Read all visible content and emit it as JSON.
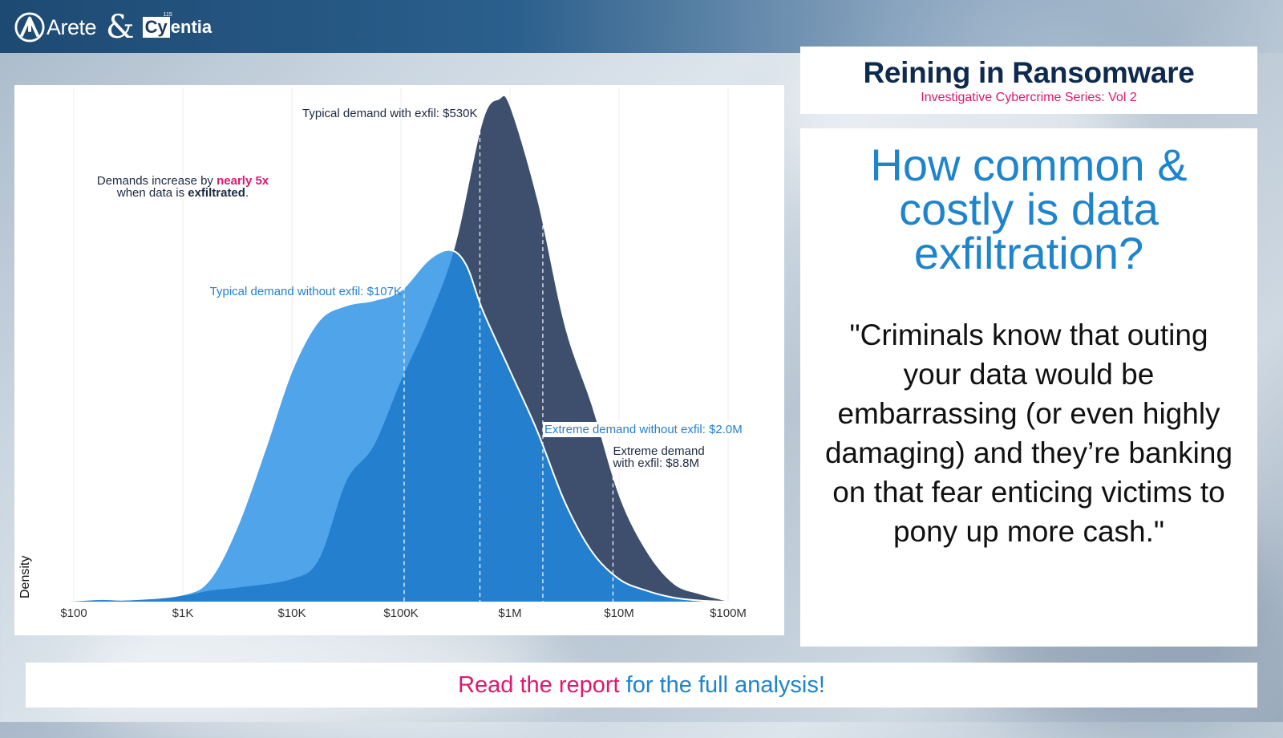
{
  "header": {
    "logo_left": "Arete",
    "ampersand": "&",
    "logo_right_box": "Cy",
    "logo_right_rest": "entia",
    "logo_right_sup": "115"
  },
  "title_card": {
    "title": "Reining in Ransomware",
    "subtitle": "Investigative Cybercrime Series: Vol 2"
  },
  "quote_card": {
    "question": "How common & costly is data exfiltration?",
    "quote": "\"Criminals know that outing your data would be embarrassing (or even highly damaging) and they’re banking on that fear enticing victims to pony up more cash.\""
  },
  "footer": {
    "link_text": "Read the report",
    "rest_text": " for the full analysis!"
  },
  "colors": {
    "with_exfil": "#3d4f6c",
    "without_exfil_light": "#4fa4ea",
    "overlap": "#2480cf",
    "title_navy": "#0f2a4f",
    "accent_pink": "#e0176d",
    "accent_blue": "#1e84cc"
  },
  "chart_data": {
    "type": "area",
    "ylabel": "Density",
    "xlabel": "",
    "x_scale": "log10",
    "xlim": [
      100,
      100000000
    ],
    "ylim": [
      0,
      1.0
    ],
    "x_ticks": [
      {
        "value": 100,
        "label": "$100"
      },
      {
        "value": 1000,
        "label": "$1K"
      },
      {
        "value": 10000,
        "label": "$10K"
      },
      {
        "value": 100000,
        "label": "$100K"
      },
      {
        "value": 1000000,
        "label": "$1M"
      },
      {
        "value": 10000000,
        "label": "$10M"
      },
      {
        "value": 100000000,
        "label": "$100M"
      }
    ],
    "series": [
      {
        "name": "with exfil",
        "color": "#3d4f6c",
        "points": [
          [
            50,
            0.0
          ],
          [
            100,
            0.002
          ],
          [
            316,
            0.004
          ],
          [
            1000,
            0.012
          ],
          [
            1778,
            0.022
          ],
          [
            3162,
            0.028
          ],
          [
            10000,
            0.045
          ],
          [
            17783,
            0.085
          ],
          [
            31623,
            0.24
          ],
          [
            56234,
            0.31
          ],
          [
            100000,
            0.44
          ],
          [
            177828,
            0.56
          ],
          [
            316228,
            0.71
          ],
          [
            562341,
            0.955
          ],
          [
            794328,
            1.0
          ],
          [
            1000000,
            0.985
          ],
          [
            1778279,
            0.8
          ],
          [
            3162278,
            0.55
          ],
          [
            5623413,
            0.39
          ],
          [
            10000000,
            0.21
          ],
          [
            17782794,
            0.1
          ],
          [
            31622777,
            0.035
          ],
          [
            56234133,
            0.014
          ],
          [
            100000000,
            0.0
          ]
        ]
      },
      {
        "name": "without exfil",
        "color": "#4fa4ea",
        "points": [
          [
            50,
            0.0
          ],
          [
            100,
            0.002
          ],
          [
            178,
            0.005
          ],
          [
            316,
            0.004
          ],
          [
            1000,
            0.014
          ],
          [
            1778,
            0.045
          ],
          [
            3162,
            0.15
          ],
          [
            5623,
            0.3
          ],
          [
            10000,
            0.46
          ],
          [
            17783,
            0.56
          ],
          [
            31623,
            0.59
          ],
          [
            56234,
            0.6
          ],
          [
            100000,
            0.62
          ],
          [
            177828,
            0.68
          ],
          [
            281838,
            0.7
          ],
          [
            398107,
            0.67
          ],
          [
            562341,
            0.58
          ],
          [
            1000000,
            0.46
          ],
          [
            1778279,
            0.34
          ],
          [
            3162278,
            0.2
          ],
          [
            5623413,
            0.1
          ],
          [
            10000000,
            0.045
          ],
          [
            17782794,
            0.022
          ],
          [
            31622777,
            0.008
          ],
          [
            56234133,
            0.002
          ],
          [
            100000000,
            0.0
          ]
        ]
      }
    ],
    "reference_lines": [
      {
        "x": 107000,
        "label": "Typical demand without exfil: $107K",
        "color": "#2480cf"
      },
      {
        "x": 530000,
        "label": "Typical demand with exfil: $530K",
        "color": "#1b2a42"
      },
      {
        "x": 2000000,
        "label": "Extreme demand without exfil: $2.0M",
        "color": "#2480cf"
      },
      {
        "x": 8800000,
        "label_lines": [
          "Extreme demand",
          "with exfil: $8.8M"
        ],
        "color": "#1b2a42"
      }
    ],
    "annotation": {
      "line1_prefix": "Demands increase by ",
      "line1_highlight": "nearly 5x",
      "line2_prefix": "when data is ",
      "line2_bold": "exfiltrated",
      "line2_suffix": "."
    }
  }
}
